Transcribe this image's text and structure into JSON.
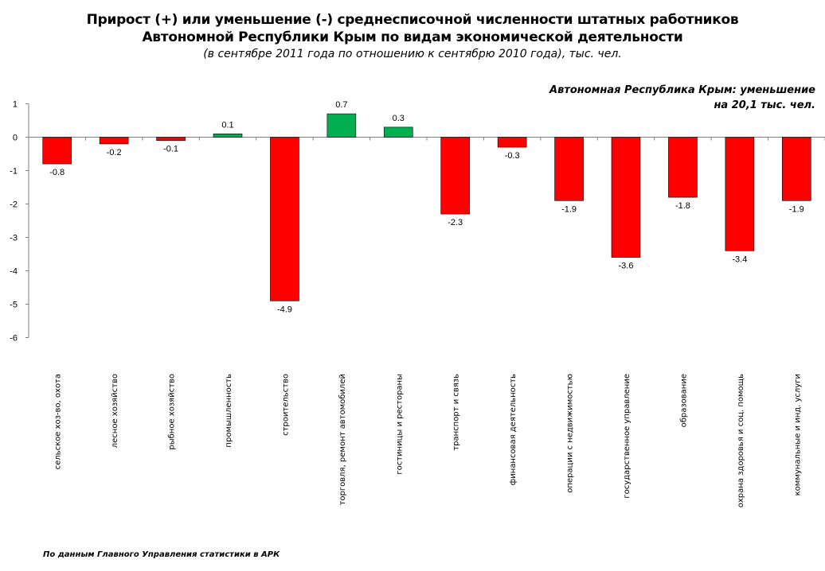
{
  "title": {
    "line1": "Прирост (+) или уменьшение (-) среднесписочной численности штатных работников",
    "line2": "Автономной Республики Крым по видам экономической деятельности",
    "subtitle": "(в сентябре 2011 года по отношению к сентябрю 2010 года), тыс. чел."
  },
  "annotation": {
    "line1": "Автономная Республика Крым: уменьшение",
    "line2": "на 20,1 тыс. чел."
  },
  "source": "По данным Главного Управления статистики в АРК",
  "colors": {
    "negative": "#ff0000",
    "positive": "#00b050",
    "axis": "#808080"
  },
  "chart_data": {
    "type": "bar",
    "categories": [
      "сельское хоз-во, охота",
      "лесное хозяйство",
      "рыбное хозяйство",
      "промышленность",
      "строительство",
      "торговля, ремонт автомобилей",
      "гостиницы и рестораны",
      "транспорт и связь",
      "финансовая деятельность",
      "операции с недвижимостью",
      "государственное управление",
      "образование",
      "охрана здоровья и  соц. помощь",
      "коммунальные и инд. услуги"
    ],
    "values": [
      -0.8,
      -0.2,
      -0.1,
      0.1,
      -4.9,
      0.7,
      0.3,
      -2.3,
      -0.3,
      -1.9,
      -3.6,
      -1.8,
      -3.4,
      -1.9
    ],
    "value_labels": [
      "-0.8",
      "-0.2",
      "-0.1",
      "0.1",
      "-4.9",
      "0.7",
      "0.3",
      "-2.3",
      "-0.3",
      "-1.9",
      "-3.6",
      "-1.8",
      "-3.4",
      "-1.9"
    ],
    "yticks": [
      1,
      0,
      -1,
      -2,
      -3,
      -4,
      -5,
      -6
    ],
    "ylim": [
      -6,
      1
    ],
    "grid": false,
    "legend": "none"
  }
}
